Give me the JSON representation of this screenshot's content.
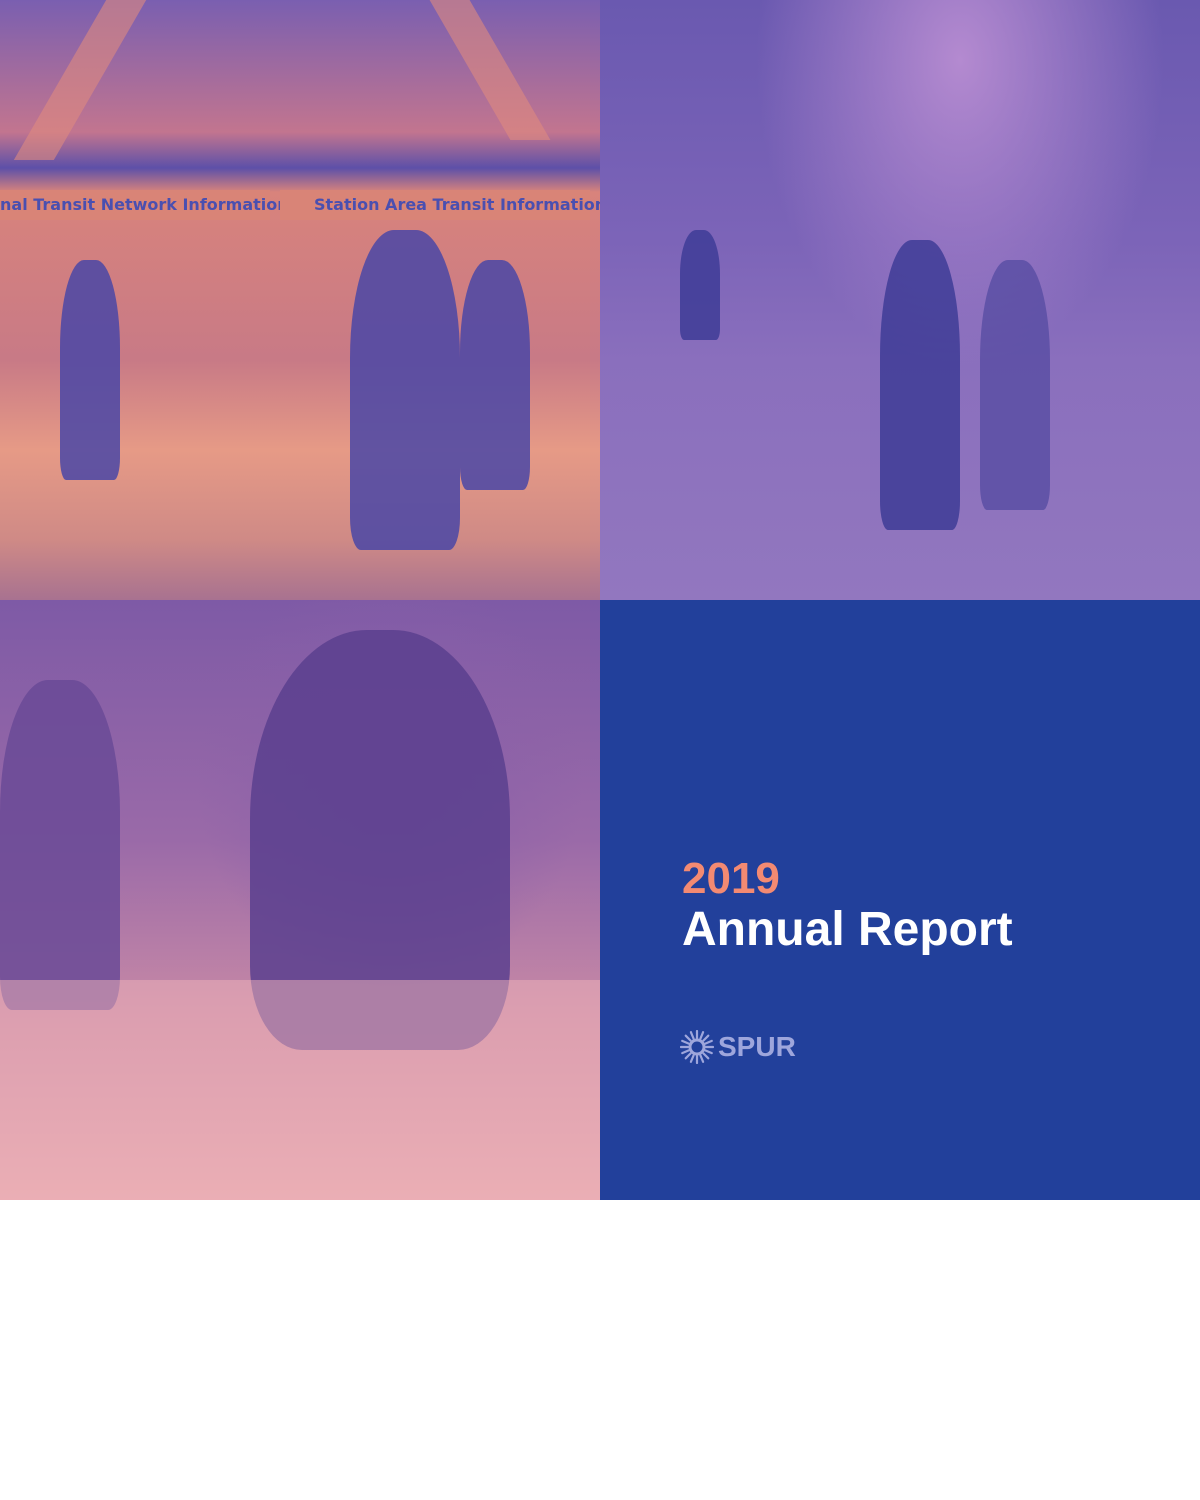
{
  "cover": {
    "year": "2019",
    "title": "Annual Report",
    "logo_text": "SPUR",
    "colors": {
      "panel": "#22409b",
      "year": "#f38a72",
      "title": "#ffffff",
      "logo": "#9ea6dc"
    }
  },
  "photos": {
    "transit": {
      "sign_left": "nal Transit Network Information",
      "sign_right": "Station Area Transit Information"
    }
  }
}
